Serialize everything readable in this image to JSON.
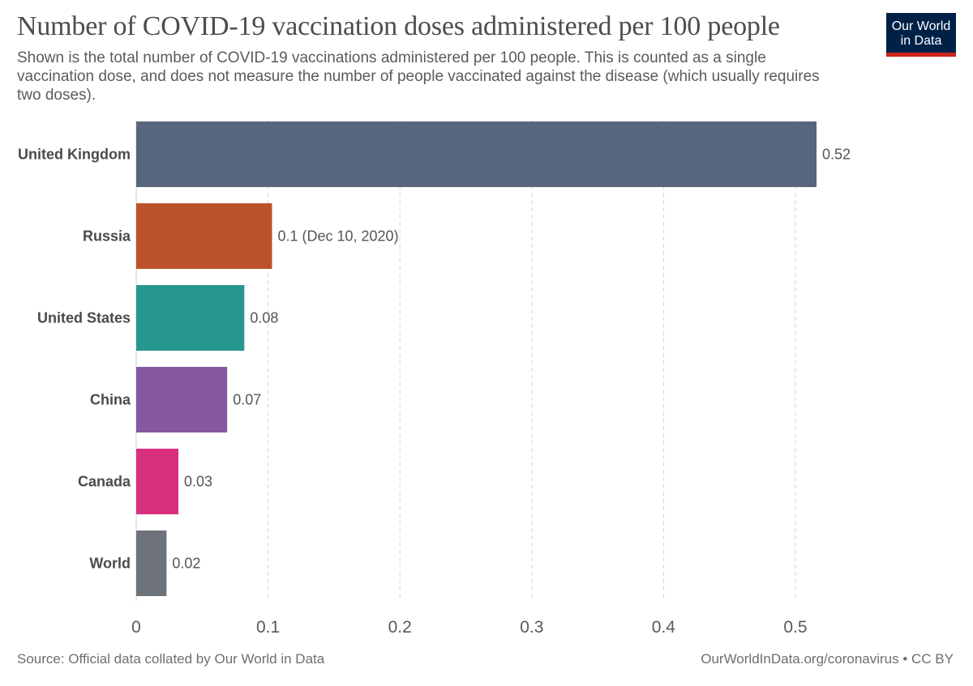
{
  "header": {
    "title": "Number of COVID-19 vaccination doses administered per 100 people",
    "subtitle": "Shown is the total number of COVID-19 vaccinations administered per 100 people. This is counted as a single vaccination dose, and does not measure the number of people vaccinated against the disease (which usually requires two doses).",
    "logo_line1": "Our World",
    "logo_line2": "in Data"
  },
  "footer": {
    "source": "Source: Official data collated by Our World in Data",
    "license": "OurWorldInData.org/coronavirus • CC BY"
  },
  "chart_data": {
    "type": "bar",
    "orientation": "horizontal",
    "categories": [
      "United Kingdom",
      "Russia",
      "United States",
      "China",
      "Canada",
      "World"
    ],
    "values": [
      0.516,
      0.103,
      0.082,
      0.069,
      0.032,
      0.023
    ],
    "value_labels": [
      "0.52",
      "0.1 (Dec 10, 2020)",
      "0.08",
      "0.07",
      "0.03",
      "0.02"
    ],
    "colors": [
      "#58667d",
      "#bb5229",
      "#26978f",
      "#8558a0",
      "#d8307d",
      "#6e737b"
    ],
    "xlim": [
      0,
      0.55
    ],
    "xticks": [
      0,
      0.1,
      0.2,
      0.3,
      0.4,
      0.5
    ],
    "xtick_labels": [
      "0",
      "0.1",
      "0.2",
      "0.3",
      "0.4",
      "0.5"
    ],
    "grid": "vertical-dashed",
    "legend": "none"
  }
}
